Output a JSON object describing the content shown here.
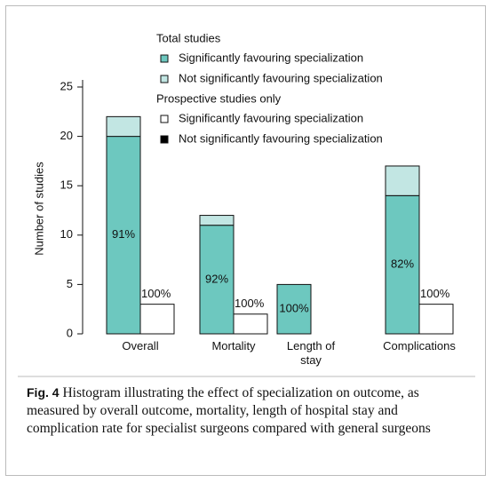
{
  "chart_data": {
    "type": "bar",
    "stacked": true,
    "ylabel": "Number of studies",
    "categories": [
      "Overall",
      "Mortality",
      "Length of stay",
      "Complications"
    ],
    "groups": [
      "Total studies",
      "Prospective studies only"
    ],
    "series": [
      {
        "name": "Significantly favouring specialization",
        "group": 0,
        "color": "#6dc8bf",
        "values": [
          20,
          11,
          5,
          14
        ]
      },
      {
        "name": "Not significantly favouring specialization",
        "group": 0,
        "color": "#c2e6e3",
        "values": [
          2,
          1,
          0,
          3
        ]
      },
      {
        "name": "Significantly favouring specialization",
        "group": 1,
        "color": "#ffffff",
        "values": [
          3,
          2,
          0,
          3
        ]
      },
      {
        "name": "Not significantly favouring specialization",
        "group": 1,
        "color": "#000000",
        "values": [
          0,
          0,
          0,
          0
        ]
      }
    ],
    "percent_labels": {
      "total": [
        "91%",
        "92%",
        "100%",
        "82%"
      ],
      "prospective": [
        "100%",
        "100%",
        null,
        "100%"
      ]
    },
    "ylim": [
      0,
      25
    ],
    "yticks": [
      0,
      5,
      10,
      15,
      20,
      25
    ],
    "caption": {
      "label": "Fig. 4",
      "text": "Histogram illustrating the effect of specialization on outcome, as measured by overall outcome, mortality, length of hospital stay and complication rate for specialist surgeons compared with general surgeons"
    }
  }
}
